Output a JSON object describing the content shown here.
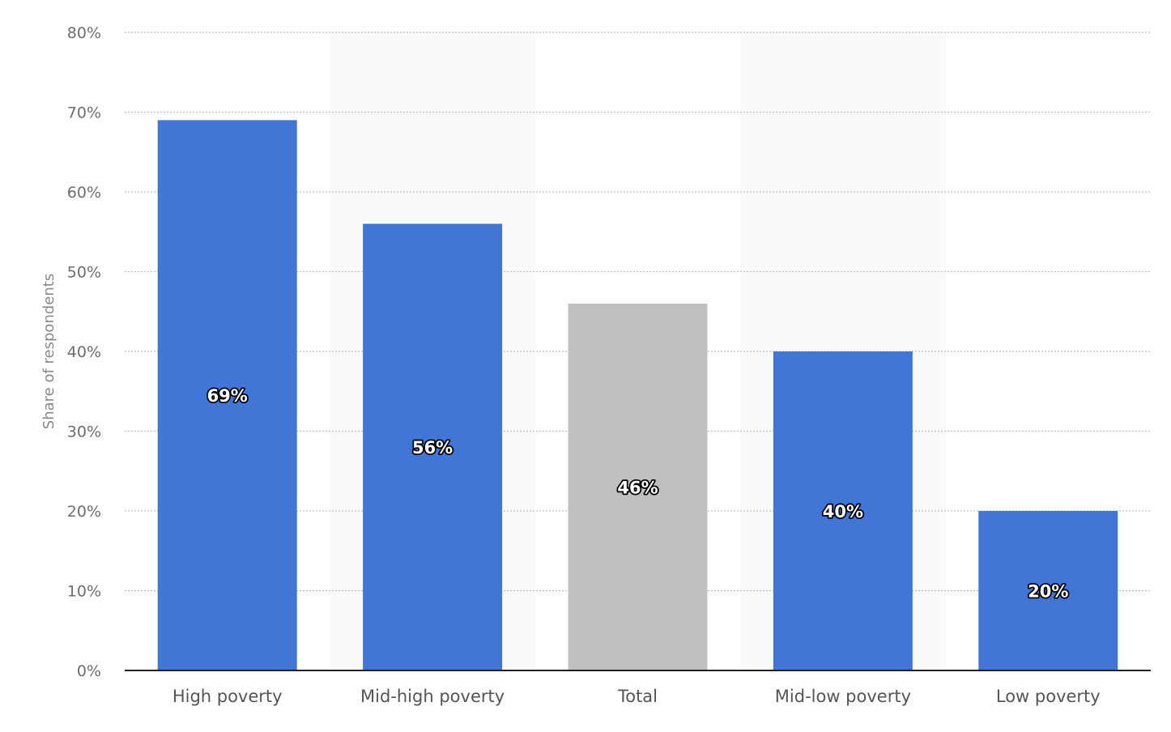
{
  "chart_data": {
    "type": "bar",
    "title": "",
    "xlabel": "",
    "ylabel": "Share of respondents",
    "ylim": [
      0,
      80
    ],
    "yticks": [
      0,
      10,
      20,
      30,
      40,
      50,
      60,
      70,
      80
    ],
    "ytick_labels": [
      "0%",
      "10%",
      "20%",
      "30%",
      "40%",
      "50%",
      "60%",
      "70%",
      "80%"
    ],
    "grid": true,
    "legend": "none",
    "categories": [
      "High poverty",
      "Mid-high poverty",
      "Total",
      "Mid-low poverty",
      "Low poverty"
    ],
    "values": [
      69,
      56,
      46,
      40,
      20
    ],
    "data_labels": [
      "69%",
      "56%",
      "46%",
      "40%",
      "20%"
    ],
    "colors": [
      "#4176d6",
      "#4176d6",
      "#c0c0c0",
      "#4176d6",
      "#4176d6"
    ],
    "band_color": "#fafafa"
  }
}
